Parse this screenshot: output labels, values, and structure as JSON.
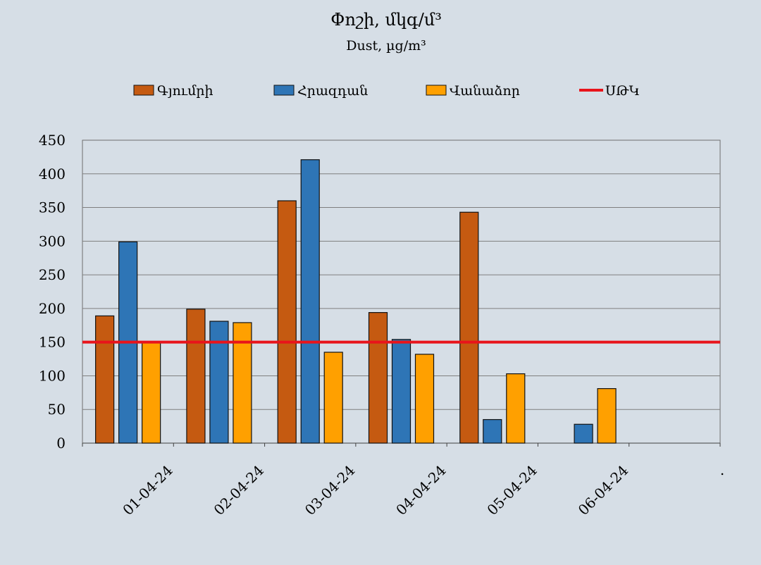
{
  "chart_data": {
    "type": "bar",
    "title": "Փոշի, մկգ/մ³",
    "subtitle": "Dust, µg/m³",
    "categories": [
      "01-04-24",
      "02-04-24",
      "03-04-24",
      "04-04-24",
      "05-04-24",
      "06-04-24",
      "."
    ],
    "series": [
      {
        "name": "Գյումրի",
        "color": "#c55a11",
        "values": [
          189,
          199,
          360,
          194,
          343,
          null,
          null
        ]
      },
      {
        "name": "Հրազդան",
        "color": "#2e75b6",
        "values": [
          299,
          181,
          421,
          154,
          35,
          28,
          null
        ]
      },
      {
        "name": "Վանաձոր",
        "color": "#ffa000",
        "values": [
          150,
          179,
          135,
          132,
          103,
          81,
          null
        ]
      }
    ],
    "reference_line": {
      "name": "ՍԹԿ",
      "value": 150,
      "color": "#e8141b"
    },
    "ylim": [
      0,
      450
    ],
    "yticks": [
      0,
      50,
      100,
      150,
      200,
      250,
      300,
      350,
      400,
      450
    ],
    "grid": true,
    "legend_position": "top",
    "background_color": "#d6dee6"
  }
}
